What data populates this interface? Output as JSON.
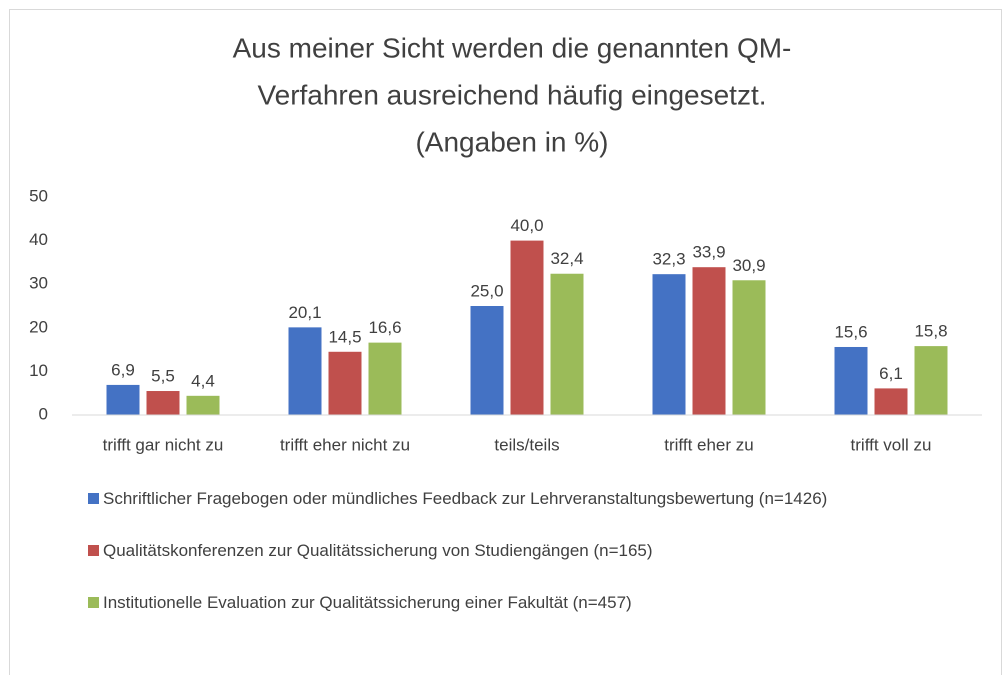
{
  "chart_data": {
    "type": "bar",
    "title": [
      "Aus meiner Sicht werden die genannten QM-",
      "Verfahren ausreichend häufig eingesetzt.",
      "(Angaben in %)"
    ],
    "categories": [
      "trifft gar nicht zu",
      "trifft eher nicht zu",
      "teils/teils",
      "trifft eher zu",
      "trifft voll zu"
    ],
    "series": [
      {
        "name": "Schriftlicher Fragebogen oder mündliches Feedback zur Lehrveranstaltungsbewertung (n=1426)",
        "color": "#4472c4",
        "values": [
          6.9,
          20.1,
          25.0,
          32.3,
          15.6
        ],
        "value_labels": [
          "6,9",
          "20,1",
          "25,0",
          "32,3",
          "15,6"
        ]
      },
      {
        "name": "Qualitätskonferenzen zur Qualitätssicherung von Studiengängen (n=165)",
        "color": "#c0504d",
        "values": [
          5.5,
          14.5,
          40.0,
          33.9,
          6.1
        ],
        "value_labels": [
          "5,5",
          "14,5",
          "40,0",
          "33,9",
          "6,1"
        ]
      },
      {
        "name": "Institutionelle Evaluation zur Qualitätssicherung einer Fakultät (n=457)",
        "color": "#9bbb59",
        "values": [
          4.4,
          16.6,
          32.4,
          30.9,
          15.8
        ],
        "value_labels": [
          "4,4",
          "16,6",
          "32,4",
          "30,9",
          "15,8"
        ]
      }
    ],
    "ylim": [
      0,
      50
    ],
    "yticks": [
      0,
      10,
      20,
      30,
      40,
      50
    ],
    "grid": false,
    "legend": "bottom"
  }
}
